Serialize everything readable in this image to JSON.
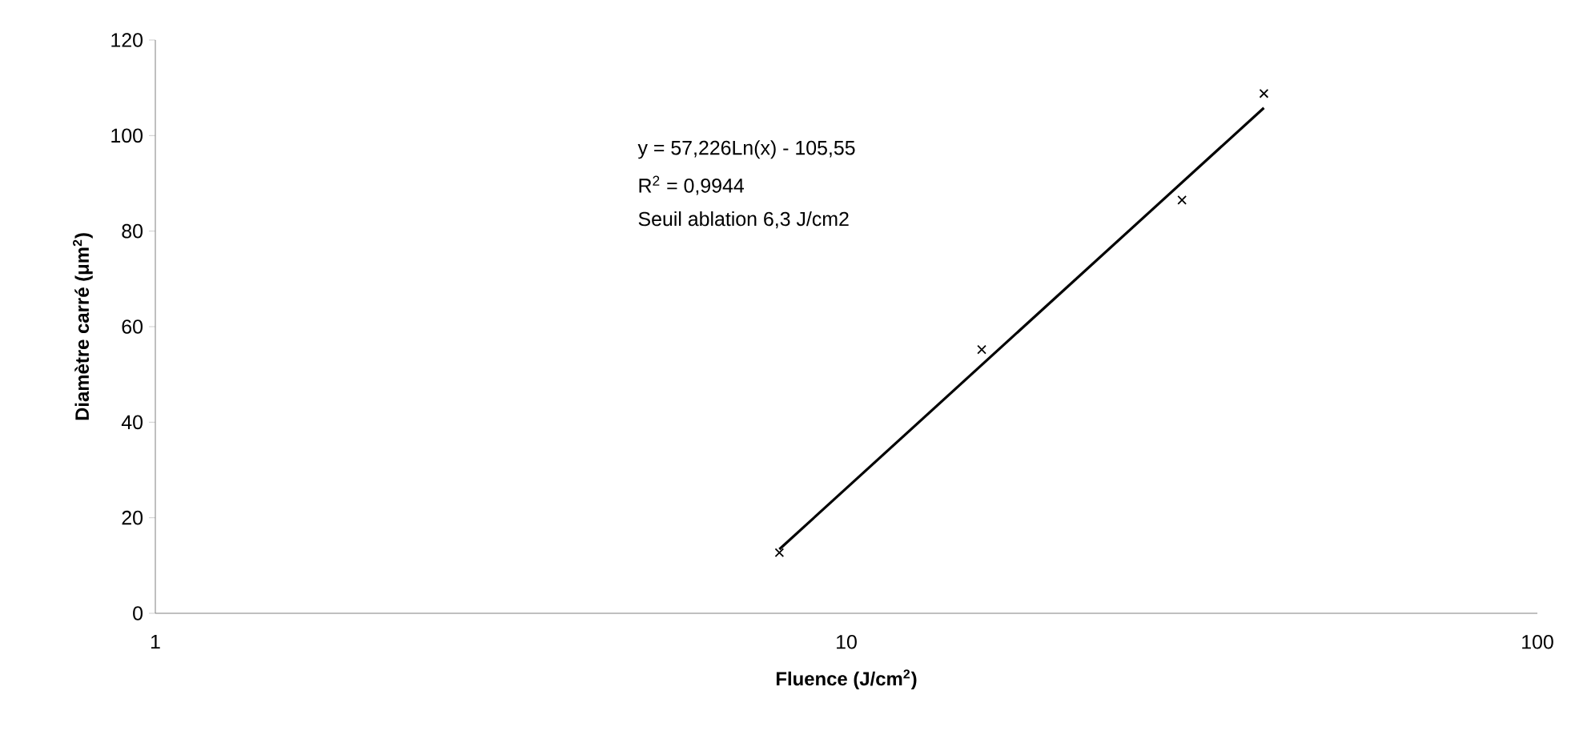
{
  "chart_data": {
    "type": "scatter",
    "xlabel": "Fluence (J/cm$^{2}$)",
    "ylabel": "Diamètre carré (μm$^{2}$)",
    "log": "x",
    "xlim": [
      1,
      100
    ],
    "xticks": [
      1,
      10,
      100
    ],
    "ylim": [
      0,
      120
    ],
    "yticks": [
      0,
      20,
      40,
      60,
      80,
      100,
      120
    ],
    "grid": false,
    "annotations": [
      "y = 57,226Ln(x) - 105,55",
      "R$^{2}$ = 0,9944",
      "Seuil ablation 6,3 J/cm2"
    ],
    "series": [
      {
        "marker": "cross",
        "color": "#000000",
        "x": [
          8.0,
          15.7,
          30.6,
          40.2
        ],
        "values": [
          12.7,
          55.2,
          86.5,
          108.8
        ]
      },
      {
        "type": "line",
        "marker": "none",
        "color": "#000000",
        "line_style": "solid",
        "x": [
          8.0,
          40.2
        ],
        "values": [
          13.4,
          105.8
        ]
      }
    ]
  }
}
